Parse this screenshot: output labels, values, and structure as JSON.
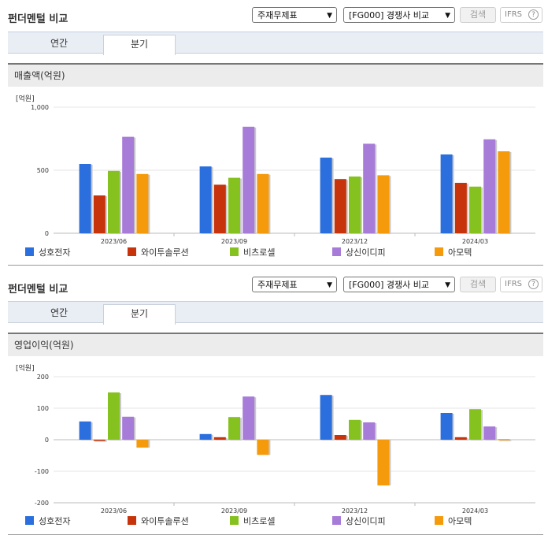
{
  "sections": [
    {
      "title": "펀더멘털 비교",
      "select1": "주재무제표",
      "select2": "[FG000] 경쟁사 비교",
      "search_label": "검색",
      "ifrs_label": "IFRS",
      "ifrs_help": "?",
      "tabs": [
        "연간",
        "분기"
      ],
      "active_tab": 1,
      "chart_title": "매출액(억원)"
    },
    {
      "title": "펀더멘털 비교",
      "select1": "주재무제표",
      "select2": "[FG000] 경쟁사 비교",
      "search_label": "검색",
      "ifrs_label": "IFRS",
      "ifrs_help": "?",
      "tabs": [
        "연간",
        "분기"
      ],
      "active_tab": 1,
      "chart_title": "영업이익(억원)"
    }
  ],
  "colors": [
    "#2b6fde",
    "#c7330b",
    "#86c21f",
    "#a77bd8",
    "#f49a0b"
  ],
  "chart_data": [
    {
      "type": "bar",
      "title": "매출액(억원)",
      "ylabel": "[억원]",
      "ylim": [
        0,
        1000
      ],
      "yticks": [
        "0",
        "500",
        "1,000"
      ],
      "ytick_values": [
        0,
        500,
        1000
      ],
      "categories": [
        "2023/06",
        "2023/09",
        "2023/12",
        "2024/03"
      ],
      "series": [
        {
          "name": "성호전자",
          "values": [
            550,
            530,
            600,
            625
          ]
        },
        {
          "name": "와이투솔루션",
          "values": [
            300,
            385,
            430,
            400
          ]
        },
        {
          "name": "비츠로셀",
          "values": [
            495,
            440,
            450,
            370
          ]
        },
        {
          "name": "상신이디피",
          "values": [
            765,
            845,
            710,
            745
          ]
        },
        {
          "name": "아모텍",
          "values": [
            470,
            470,
            460,
            650
          ]
        }
      ],
      "legend": "bottom",
      "grid": true
    },
    {
      "type": "bar",
      "title": "영업이익(억원)",
      "ylabel": "[억원]",
      "ylim": [
        -200,
        200
      ],
      "yticks": [
        "-200",
        "-100",
        "0",
        "100",
        "200"
      ],
      "ytick_values": [
        -200,
        -100,
        0,
        100,
        200
      ],
      "categories": [
        "2023/06",
        "2023/09",
        "2023/12",
        "2024/03"
      ],
      "series": [
        {
          "name": "성호전자",
          "values": [
            58,
            18,
            142,
            85
          ]
        },
        {
          "name": "와이투솔루션",
          "values": [
            0,
            8,
            15,
            8
          ]
        },
        {
          "name": "비츠로셀",
          "values": [
            150,
            72,
            63,
            97
          ]
        },
        {
          "name": "상신이디피",
          "values": [
            73,
            137,
            55,
            42
          ]
        },
        {
          "name": "아모텍",
          "values": [
            -25,
            -48,
            -145,
            2
          ]
        }
      ],
      "legend": "bottom",
      "grid": true
    }
  ]
}
